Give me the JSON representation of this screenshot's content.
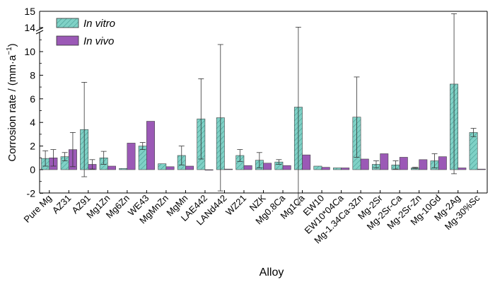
{
  "chart_data": {
    "type": "bar",
    "xlabel": "Alloy",
    "ylabel": "Corrosion rate / (mm·a",
    "ylabel_sup": "−1",
    "ylabel_end": ")",
    "ylim": [
      -2,
      15
    ],
    "axis_break": [
      12.2,
      13.8
    ],
    "yticks_low": [
      "-2",
      "0",
      "2",
      "4",
      "6",
      "8",
      "10"
    ],
    "yticks_high": [
      "14",
      "15"
    ],
    "legend": {
      "position": "top-left"
    },
    "categories": [
      "Pure Mg",
      "AZ31",
      "AZ91",
      "Mg1Zn",
      "Mg6Zn",
      "WE43",
      "MgMnZn",
      "MgMn",
      "LAE442",
      "LANd442",
      "WZ21",
      "NZK",
      "Mg0.8Ca",
      "Mg1Ca",
      "EW10",
      "EW10*04Ca",
      "Mg-1.34Ca-3Zn",
      "Mg-2Sr",
      "Mg-2Sr-Ca",
      "Mg-2Sr-Zn",
      "Mg-10Gd",
      "Mg-2Ag",
      "Mg-30%Sc"
    ],
    "series": [
      {
        "name": "In vitro",
        "color": "#7fd1c6",
        "pattern": "hatch",
        "values": [
          0.95,
          1.1,
          3.4,
          1.0,
          0.1,
          2.0,
          0.5,
          1.2,
          4.3,
          4.4,
          1.2,
          0.8,
          0.65,
          5.3,
          0.3,
          0.15,
          4.45,
          0.45,
          0.4,
          0.15,
          0.75,
          7.25,
          3.15
        ],
        "errors": [
          0.65,
          0.35,
          4.0,
          0.55,
          0.0,
          0.3,
          0.0,
          0.8,
          3.4,
          6.2,
          0.5,
          0.65,
          0.2,
          8.3,
          0.0,
          0.0,
          3.4,
          0.3,
          0.35,
          0.05,
          0.6,
          7.6,
          0.35
        ]
      },
      {
        "name": "In vivo",
        "color": "#9b59b6",
        "pattern": "solid",
        "values": [
          1.0,
          1.7,
          0.45,
          0.3,
          2.25,
          4.1,
          0.25,
          0.3,
          0.0,
          0.05,
          0.35,
          0.55,
          0.35,
          1.25,
          0.2,
          0.15,
          0.9,
          1.35,
          1.05,
          0.85,
          1.1,
          0.15,
          0.05
        ],
        "errors": [
          0.7,
          1.45,
          0.4,
          0.0,
          0.0,
          0.0,
          0.0,
          0.0,
          0.0,
          0.0,
          0.0,
          0.0,
          0.0,
          0.0,
          0.0,
          0.0,
          0.0,
          0.0,
          0.0,
          0.0,
          0.0,
          0.0,
          0.0
        ]
      }
    ]
  }
}
